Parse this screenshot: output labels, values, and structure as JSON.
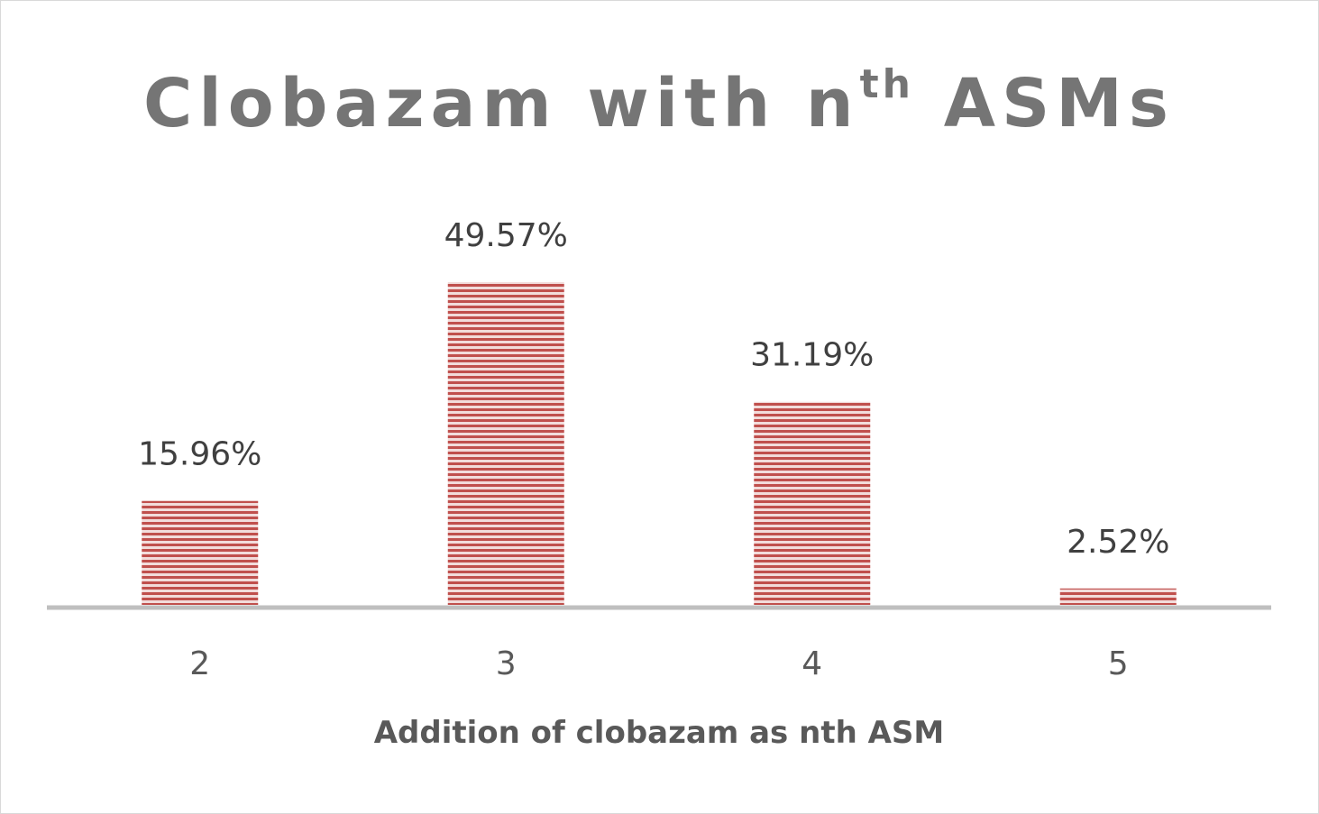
{
  "chart_data": {
    "type": "bar",
    "title": {
      "main_before": "Clobazam with n",
      "superscript": "th",
      "main_after": " ASMs"
    },
    "categories": [
      "2",
      "3",
      "4",
      "5"
    ],
    "values": [
      15.96,
      49.57,
      31.19,
      2.52
    ],
    "value_labels": [
      "15.96%",
      "49.57%",
      "31.19%",
      "2.52%"
    ],
    "xlabel": "Addition of clobazam as nth ASM",
    "ylabel": "",
    "ylim": [
      0,
      50
    ],
    "grid": false,
    "legend": "none",
    "bar_color": "#c0504d",
    "bar_pattern": "horizontal-stripes",
    "axis_color": "#bfbfbf"
  }
}
